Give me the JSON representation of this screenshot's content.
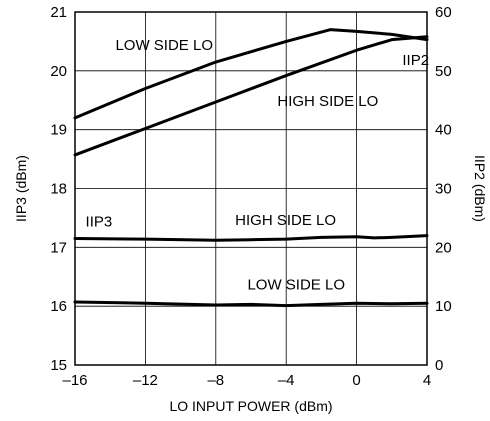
{
  "chart_data": {
    "type": "line",
    "title": "",
    "xlabel": "LO INPUT POWER (dBm)",
    "ylabel_left": "IIP3 (dBm)",
    "ylabel_right": "IIP2 (dBm)",
    "xlim": [
      -16,
      4
    ],
    "ylim_left": [
      15,
      21
    ],
    "ylim_right": [
      0,
      60
    ],
    "x_ticks": [
      "–16",
      "–12",
      "–8",
      "–4",
      "0",
      "4"
    ],
    "x_tick_values": [
      -16,
      -12,
      -8,
      -4,
      0,
      4
    ],
    "y_left_ticks": [
      "15",
      "16",
      "17",
      "18",
      "19",
      "20",
      "21"
    ],
    "y_left_tick_values": [
      15,
      16,
      17,
      18,
      19,
      20,
      21
    ],
    "y_right_ticks": [
      "0",
      "10",
      "20",
      "30",
      "40",
      "50",
      "60"
    ],
    "y_right_tick_values": [
      0,
      10,
      20,
      30,
      40,
      50,
      60
    ],
    "grid": true,
    "series": [
      {
        "axis": "right",
        "x": [
          -16,
          -12,
          -8,
          -4,
          -1.5,
          0,
          2,
          4
        ],
        "y": [
          42,
          47,
          51.5,
          55,
          57,
          56.7,
          56.2,
          55.3
        ]
      },
      {
        "axis": "right",
        "x": [
          -16,
          -12,
          -8,
          -4,
          0,
          2,
          4
        ],
        "y": [
          35.7,
          40.2,
          44.7,
          49.2,
          53.5,
          55.3,
          55.8
        ]
      },
      {
        "axis": "left",
        "x": [
          -16,
          -12,
          -8,
          -6,
          -4,
          -2,
          0,
          1,
          2,
          4
        ],
        "y": [
          17.15,
          17.14,
          17.12,
          17.13,
          17.14,
          17.17,
          17.18,
          17.16,
          17.17,
          17.2
        ]
      },
      {
        "axis": "left",
        "x": [
          -16,
          -12,
          -8,
          -6,
          -4,
          -2,
          0,
          2,
          4
        ],
        "y": [
          16.07,
          16.05,
          16.02,
          16.03,
          16.01,
          16.03,
          16.05,
          16.04,
          16.05
        ]
      }
    ],
    "annotations": [
      {
        "text": "LOW SIDE LO",
        "x": -13.7,
        "y_left": 20.35
      },
      {
        "text": "IIP2",
        "x": 2.6,
        "y_left": 20.1
      },
      {
        "text": "HIGH SIDE LO",
        "x": -4.5,
        "y_left": 19.4
      },
      {
        "text": "IIP3",
        "x": -15.4,
        "y_left": 17.35
      },
      {
        "text": "HIGH SIDE LO",
        "x": -6.9,
        "y_left": 17.38
      },
      {
        "text": "LOW SIDE LO",
        "x": -6.2,
        "y_left": 16.28
      }
    ],
    "line_color": "#000000",
    "grid_color": "#000000"
  }
}
